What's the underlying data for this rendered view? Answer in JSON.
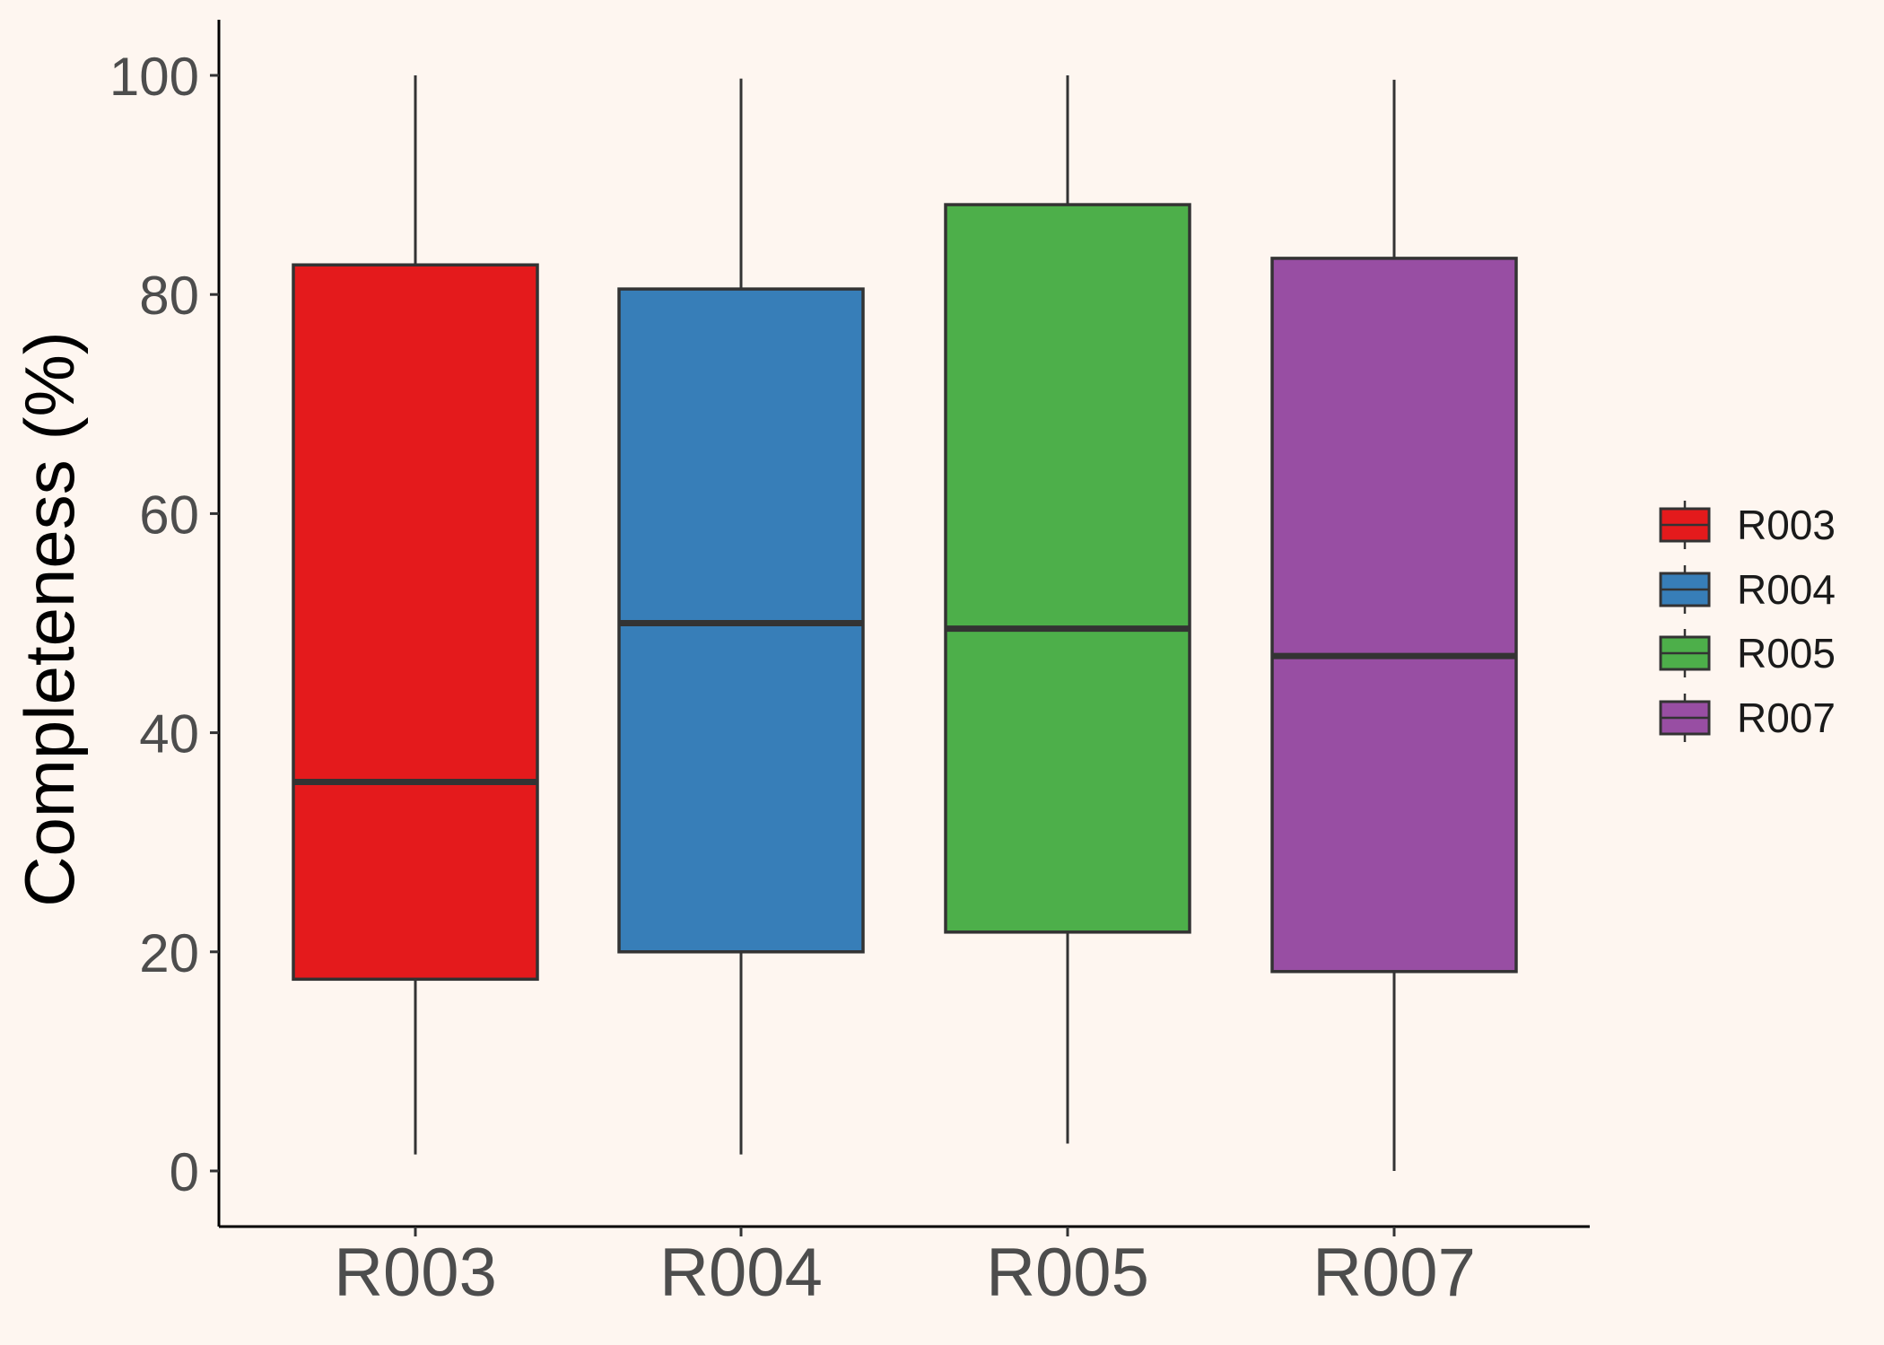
{
  "chart_data": {
    "type": "boxplot",
    "title": "",
    "xlabel": "",
    "ylabel": "Completeness (%)",
    "ylim": [
      -5,
      105
    ],
    "yticks": [
      0,
      20,
      40,
      60,
      80,
      100
    ],
    "categories": [
      "R003",
      "R004",
      "R005",
      "R007"
    ],
    "boxes": [
      {
        "name": "R003",
        "min": 1.5,
        "q1": 17.5,
        "median": 35.5,
        "q3": 82.7,
        "max": 100,
        "color": "#e41a1c"
      },
      {
        "name": "R004",
        "min": 1.5,
        "q1": 20.0,
        "median": 50.0,
        "q3": 80.5,
        "max": 99.7,
        "color": "#377eb8"
      },
      {
        "name": "R005",
        "min": 2.5,
        "q1": 21.8,
        "median": 49.5,
        "q3": 88.2,
        "max": 100,
        "color": "#4daf4a"
      },
      {
        "name": "R007",
        "min": 0.0,
        "q1": 18.2,
        "median": 47.0,
        "q3": 83.3,
        "max": 99.6,
        "color": "#984ea3"
      }
    ],
    "grid": false,
    "legend": {
      "position": "right",
      "entries": [
        "R003",
        "R004",
        "R005",
        "R007"
      ]
    }
  }
}
